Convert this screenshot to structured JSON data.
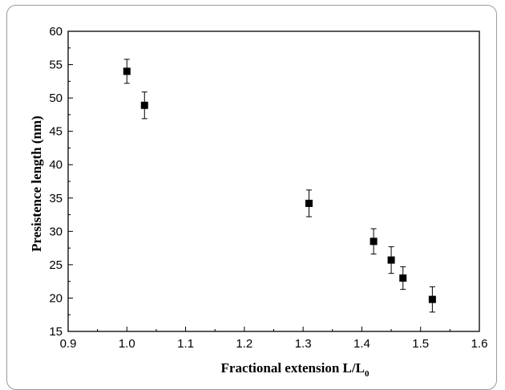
{
  "chart_data": {
    "type": "scatter",
    "title": "",
    "xlabel": "Fractional extension L/L",
    "xlabel_subscript": "0",
    "ylabel": "Presistence length (nm)",
    "xlim": [
      0.9,
      1.6
    ],
    "ylim": [
      15,
      60
    ],
    "xticks": [
      "0.9",
      "1.0",
      "1.1",
      "1.2",
      "1.3",
      "1.4",
      "1.5",
      "1.6"
    ],
    "yticks": [
      "15",
      "20",
      "25",
      "30",
      "35",
      "40",
      "45",
      "50",
      "55",
      "60"
    ],
    "grid": false,
    "legend": "none",
    "marker": "square",
    "marker_color": "#000000",
    "series": [
      {
        "x": [
          1.0,
          1.03,
          1.31,
          1.42,
          1.45,
          1.47,
          1.52
        ],
        "y": [
          54.0,
          48.9,
          34.2,
          28.5,
          25.7,
          23.0,
          19.8
        ],
        "yerr": [
          1.8,
          2.0,
          2.0,
          1.9,
          2.0,
          1.7,
          1.9
        ]
      }
    ]
  }
}
